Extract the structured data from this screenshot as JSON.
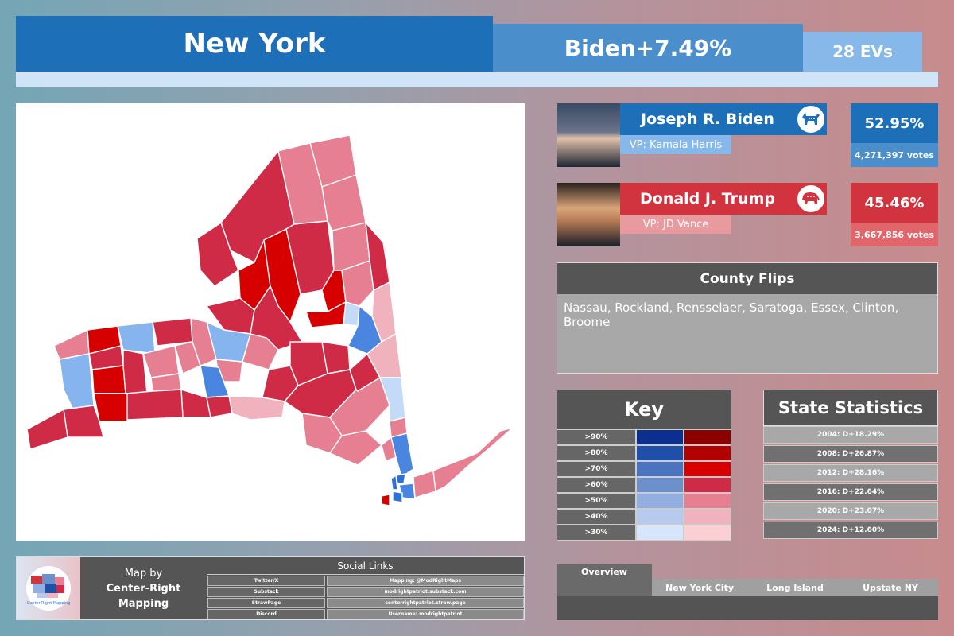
{
  "header": {
    "state": "New York",
    "margin": "Biden+7.49%",
    "electoral_votes": "28 EVs"
  },
  "candidates": [
    {
      "name": "Joseph R. Biden",
      "vp": "VP: Kamala Harris",
      "percent": "52.95%",
      "votes": "4,271,397 votes",
      "party_icon": "donkey-icon",
      "color": "#1d6fb8"
    },
    {
      "name": "Donald J. Trump",
      "vp": "VP: JD Vance",
      "percent": "45.46%",
      "votes": "3,667,856 votes",
      "party_icon": "elephant-icon",
      "color": "#d1343e"
    }
  ],
  "county_flips": {
    "title": "County Flips",
    "list": "Nassau, Rockland, Rensselaer, Saratoga, Essex, Clinton, Broome"
  },
  "key": {
    "title": "Key",
    "rows": [
      {
        "label": ">90%",
        "blue": "#0a2f8f",
        "red": "#8b0000"
      },
      {
        "label": ">80%",
        "blue": "#1f4fa6",
        "red": "#b30000"
      },
      {
        "label": ">70%",
        "blue": "#4c73bd",
        "red": "#d60000"
      },
      {
        "label": ">60%",
        "blue": "#6d8fca",
        "red": "#cf2b47"
      },
      {
        "label": ">50%",
        "blue": "#93aee0",
        "red": "#e67f92"
      },
      {
        "label": ">40%",
        "blue": "#b6caee",
        "red": "#f0b2bd"
      },
      {
        "label": ">30%",
        "blue": "#d8e6fb",
        "red": "#fcd0d3"
      }
    ]
  },
  "state_statistics": {
    "title": "State Statistics",
    "rows": [
      "2004: D+18.29%",
      "2008: D+26.87%",
      "2012: D+28.16%",
      "2016: D+22.64%",
      "2020: D+23.07%",
      "2024: D+12.60%"
    ]
  },
  "credit": {
    "map_by": "Map by",
    "author": "Center-Right Mapping",
    "logo_text": "Center-Right Mapping",
    "social_title": "Social Links",
    "social": [
      {
        "platform": "Twitter/X",
        "handle": "Mapping: @ModRightMaps"
      },
      {
        "platform": "Substack",
        "handle": "modrightpatriot.substack.com"
      },
      {
        "platform": "StrawPage",
        "handle": "centerrightpatriot.straw.page"
      },
      {
        "platform": "Discord",
        "handle": "Username: modrightpatriot"
      }
    ]
  },
  "tabs": [
    "Overview",
    "New York City",
    "Long Island",
    "Upstate NY"
  ],
  "map": {
    "palette": {
      "red_strong": "#d60000",
      "red_likely": "#cf2b47",
      "red_lean": "#e67f92",
      "red_tilt": "#f0b2bd",
      "blue_strong": "#2e6fd8",
      "blue_likely": "#4a86e0",
      "blue_lean": "#86b4ee",
      "blue_tilt": "#c4dbf8"
    }
  }
}
